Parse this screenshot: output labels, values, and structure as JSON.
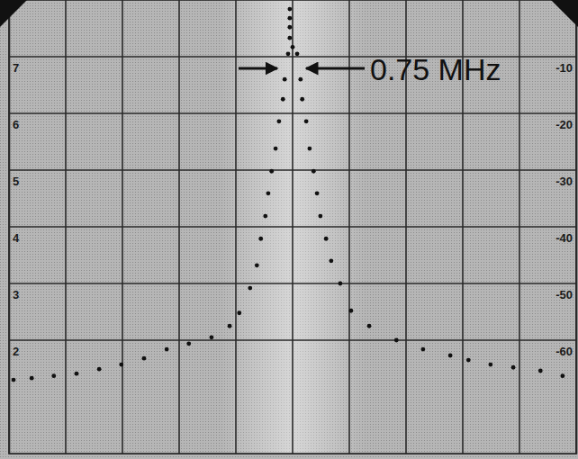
{
  "chart_data": {
    "type": "scatter",
    "annotations": [
      "0.75 MHz"
    ],
    "xlim": [
      -5,
      5
    ],
    "xticks": [
      -5,
      -4,
      -3,
      -2,
      -1,
      0,
      1,
      2,
      3,
      4,
      5
    ],
    "ylim": [
      0,
      8
    ],
    "yticks": [
      2,
      3,
      4,
      5,
      6,
      7
    ],
    "y2lim": [
      -80,
      0
    ],
    "y2ticks": [
      -60,
      -50,
      -40,
      -30,
      -20,
      -10
    ],
    "grid": true,
    "tick_labels": "y",
    "x": [
      -4.92,
      -4.6,
      -4.21,
      -3.81,
      -3.41,
      -3.02,
      -2.62,
      -2.22,
      -1.83,
      -1.43,
      -1.11,
      -0.94,
      -0.75,
      -0.63,
      -0.56,
      -0.48,
      -0.43,
      -0.37,
      -0.3,
      -0.24,
      -0.17,
      -0.14,
      -0.08,
      -0.05,
      -0.05,
      -0.05,
      -0.05,
      0,
      0.08,
      0.14,
      0.17,
      0.24,
      0.3,
      0.37,
      0.43,
      0.49,
      0.59,
      0.68,
      0.84,
      1.03,
      1.35,
      1.83,
      2.3,
      2.78,
      3.1,
      3.49,
      3.89,
      4.37,
      4.76
    ],
    "series": [
      {
        "axis": "y2",
        "color": "#111111",
        "marker": "circle",
        "values": [
          -67.0,
          -66.7,
          -66.3,
          -65.9,
          -65.1,
          -64.3,
          -63.2,
          -61.6,
          -60.6,
          -59.5,
          -57.5,
          -55.2,
          -50.8,
          -46.8,
          -42.1,
          -38.1,
          -34.1,
          -30.2,
          -26.2,
          -21.4,
          -17.5,
          -14.0,
          -9.5,
          -6.7,
          -4.8,
          -3.2,
          -1.6,
          -8.3,
          -9.5,
          -14.0,
          -17.5,
          -21.4,
          -26.2,
          -30.2,
          -34.1,
          -38.1,
          -42.1,
          -46.0,
          -50.0,
          -54.8,
          -57.5,
          -60.0,
          -61.6,
          -62.7,
          -63.5,
          -64.3,
          -64.8,
          -65.4,
          -66.3
        ]
      }
    ]
  }
}
